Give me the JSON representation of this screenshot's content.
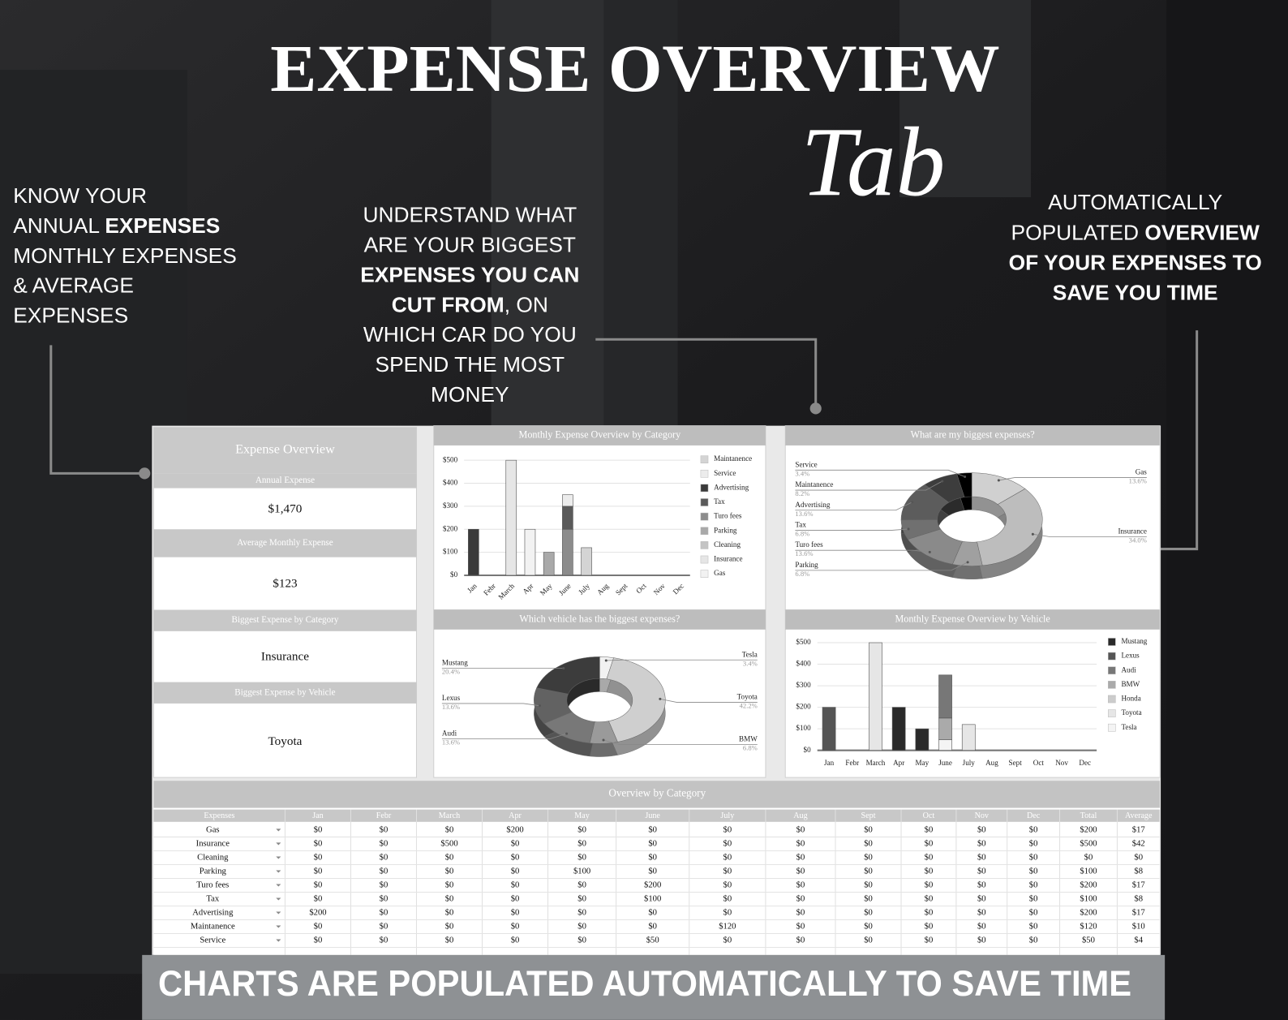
{
  "header": {
    "title": "EXPENSE OVERVIEW",
    "script": "Tab"
  },
  "callouts": [
    {
      "lines": [
        [
          {
            "text": "KNOW YOUR"
          }
        ],
        [
          {
            "text": "ANNUAL "
          },
          {
            "text": "EXPENSES",
            "bold": true
          }
        ],
        [
          {
            "text": "MONTHLY EXPENSES"
          }
        ],
        [
          {
            "text": "& AVERAGE"
          }
        ],
        [
          {
            "text": "EXPENSES"
          }
        ]
      ]
    },
    {
      "lines": [
        [
          {
            "text": "UNDERSTAND WHAT"
          }
        ],
        [
          {
            "text": "ARE YOUR BIGGEST"
          }
        ],
        [
          {
            "text": "EXPENSES YOU CAN",
            "bold": true
          }
        ],
        [
          {
            "text": "CUT FROM",
            "bold": true
          },
          {
            "text": ", ON"
          }
        ],
        [
          {
            "text": "WHICH CAR DO YOU"
          }
        ],
        [
          {
            "text": "SPEND THE MOST"
          }
        ],
        [
          {
            "text": "MONEY"
          }
        ]
      ]
    },
    {
      "lines": [
        [
          {
            "text": "AUTOMATICALLY"
          }
        ],
        [
          {
            "text": "POPULATED "
          },
          {
            "text": "OVERVIEW",
            "bold": true
          }
        ],
        [
          {
            "text": "OF YOUR EXPENSES TO",
            "bold": true
          }
        ],
        [
          {
            "text": "SAVE YOU TIME",
            "bold": true
          }
        ]
      ]
    }
  ],
  "summary": {
    "title": "Expense Overview",
    "items": [
      {
        "label": "Annual Expense",
        "value": "$1,470"
      },
      {
        "label": "Average Monthly Expense",
        "value": "$123"
      },
      {
        "label": "Biggest Expense by Category",
        "value": "Insurance"
      },
      {
        "label": "Biggest Expense by Vehicle",
        "value": "Toyota"
      }
    ]
  },
  "chart_data": [
    {
      "type": "bar",
      "title": "Monthly Expense Overview by Category",
      "stacked": true,
      "grid": true,
      "legend": "right",
      "categories": [
        "Jan",
        "Febr",
        "March",
        "Apr",
        "May",
        "June",
        "July",
        "Aug",
        "Sept",
        "Oct",
        "Nov",
        "Dec"
      ],
      "ylim": [
        0,
        500
      ],
      "yticks": [
        {
          "value": 0,
          "label": "$0"
        },
        {
          "value": 100,
          "label": "$100"
        },
        {
          "value": 200,
          "label": "$200"
        },
        {
          "value": 300,
          "label": "$300"
        },
        {
          "value": 400,
          "label": "$400"
        },
        {
          "value": 500,
          "label": "$500"
        }
      ],
      "series": [
        {
          "name": "Maintanence",
          "color": "#d4d4d4",
          "values": [
            0,
            0,
            0,
            0,
            0,
            0,
            120,
            0,
            0,
            0,
            0,
            0
          ]
        },
        {
          "name": "Service",
          "color": "#ececec",
          "values": [
            0,
            0,
            0,
            0,
            0,
            50,
            0,
            0,
            0,
            0,
            0,
            0
          ]
        },
        {
          "name": "Advertising",
          "color": "#3a3a3a",
          "values": [
            200,
            0,
            0,
            0,
            0,
            0,
            0,
            0,
            0,
            0,
            0,
            0
          ]
        },
        {
          "name": "Tax",
          "color": "#5a5a5a",
          "values": [
            0,
            0,
            0,
            0,
            0,
            100,
            0,
            0,
            0,
            0,
            0,
            0
          ]
        },
        {
          "name": "Turo fees",
          "color": "#8c8c8c",
          "values": [
            0,
            0,
            0,
            0,
            0,
            200,
            0,
            0,
            0,
            0,
            0,
            0
          ]
        },
        {
          "name": "Parking",
          "color": "#a9a9a9",
          "values": [
            0,
            0,
            0,
            0,
            100,
            0,
            0,
            0,
            0,
            0,
            0,
            0
          ]
        },
        {
          "name": "Cleaning",
          "color": "#c4c4c4",
          "values": [
            0,
            0,
            0,
            0,
            0,
            0,
            0,
            0,
            0,
            0,
            0,
            0
          ]
        },
        {
          "name": "Insurance",
          "color": "#e6e6e6",
          "values": [
            0,
            0,
            500,
            0,
            0,
            0,
            0,
            0,
            0,
            0,
            0,
            0
          ]
        },
        {
          "name": "Gas",
          "color": "#f2f2f2",
          "values": [
            0,
            0,
            0,
            200,
            0,
            0,
            0,
            0,
            0,
            0,
            0,
            0
          ]
        }
      ]
    },
    {
      "type": "pie",
      "title": "What are my biggest expenses?",
      "categories": [
        "Gas",
        "Insurance",
        "Parking",
        "Turo fees",
        "Tax",
        "Advertising",
        "Maintanence",
        "Service"
      ],
      "values": [
        13.6,
        34,
        6.8,
        13.6,
        6.8,
        13.6,
        8.2,
        3.4
      ],
      "value_labels": [
        "13.6%",
        "34.0%",
        "6.8%",
        "13.6%",
        "6.8%",
        "13.6%",
        "8.2%",
        "3.4%"
      ],
      "colors": [
        "#d0d0d0",
        "#bdbdbd",
        "#a0a0a0",
        "#8a8a8a",
        "#707070",
        "#5c5c5c",
        "#3d3d3d",
        "#000000"
      ]
    },
    {
      "type": "pie",
      "title": "Which vehicle has the biggest expenses?",
      "categories": [
        "Tesla",
        "Toyota",
        "BMW",
        "Audi",
        "Lexus",
        "Mustang"
      ],
      "values": [
        3.4,
        42.2,
        6.8,
        13.6,
        13.6,
        20.4
      ],
      "value_labels": [
        "3.4%",
        "42.2%",
        "6.8%",
        "13.6%",
        "13.6%",
        "20.4%"
      ],
      "colors": [
        "#f2f2f2",
        "#cfcfcf",
        "#9a9a9a",
        "#787878",
        "#626262",
        "#3c3c3c"
      ]
    },
    {
      "type": "bar",
      "title": "Monthly Expense Overview by Vehicle",
      "stacked": true,
      "grid": true,
      "legend": "right",
      "categories": [
        "Jan",
        "Febr",
        "March",
        "Apr",
        "May",
        "June",
        "July",
        "Aug",
        "Sept",
        "Oct",
        "Nov",
        "Dec"
      ],
      "ylim": [
        0,
        500
      ],
      "yticks": [
        {
          "value": 0,
          "label": "$0"
        },
        {
          "value": 100,
          "label": "$100"
        },
        {
          "value": 200,
          "label": "$200"
        },
        {
          "value": 300,
          "label": "$300"
        },
        {
          "value": 400,
          "label": "$400"
        },
        {
          "value": 500,
          "label": "$500"
        }
      ],
      "series": [
        {
          "name": "Mustang",
          "color": "#2a2a2a",
          "values": [
            0,
            0,
            0,
            200,
            100,
            0,
            0,
            0,
            0,
            0,
            0,
            0
          ]
        },
        {
          "name": "Lexus",
          "color": "#555555",
          "values": [
            200,
            0,
            0,
            0,
            0,
            0,
            0,
            0,
            0,
            0,
            0,
            0
          ]
        },
        {
          "name": "Audi",
          "color": "#777777",
          "values": [
            0,
            0,
            0,
            0,
            0,
            200,
            0,
            0,
            0,
            0,
            0,
            0
          ]
        },
        {
          "name": "BMW",
          "color": "#aaaaaa",
          "values": [
            0,
            0,
            0,
            0,
            0,
            100,
            0,
            0,
            0,
            0,
            0,
            0
          ]
        },
        {
          "name": "Honda",
          "color": "#cccccc",
          "values": [
            0,
            0,
            0,
            0,
            0,
            0,
            0,
            0,
            0,
            0,
            0,
            0
          ]
        },
        {
          "name": "Toyota",
          "color": "#e6e6e6",
          "values": [
            0,
            0,
            500,
            0,
            0,
            0,
            120,
            0,
            0,
            0,
            0,
            0
          ]
        },
        {
          "name": "Tesla",
          "color": "#f4f4f4",
          "values": [
            0,
            0,
            0,
            0,
            0,
            50,
            0,
            0,
            0,
            0,
            0,
            0
          ]
        }
      ]
    }
  ],
  "table": {
    "title": "Overview by Category",
    "columns": [
      "Expenses",
      "Jan",
      "Febr",
      "March",
      "Apr",
      "May",
      "June",
      "July",
      "Aug",
      "Sept",
      "Oct",
      "Nov",
      "Dec",
      "Total",
      "Average"
    ],
    "rows": [
      [
        "Gas",
        "$0",
        "$0",
        "$0",
        "$200",
        "$0",
        "$0",
        "$0",
        "$0",
        "$0",
        "$0",
        "$0",
        "$0",
        "$200",
        "$17"
      ],
      [
        "Insurance",
        "$0",
        "$0",
        "$500",
        "$0",
        "$0",
        "$0",
        "$0",
        "$0",
        "$0",
        "$0",
        "$0",
        "$0",
        "$500",
        "$42"
      ],
      [
        "Cleaning",
        "$0",
        "$0",
        "$0",
        "$0",
        "$0",
        "$0",
        "$0",
        "$0",
        "$0",
        "$0",
        "$0",
        "$0",
        "$0",
        "$0"
      ],
      [
        "Parking",
        "$0",
        "$0",
        "$0",
        "$0",
        "$100",
        "$0",
        "$0",
        "$0",
        "$0",
        "$0",
        "$0",
        "$0",
        "$100",
        "$8"
      ],
      [
        "Turo fees",
        "$0",
        "$0",
        "$0",
        "$0",
        "$0",
        "$200",
        "$0",
        "$0",
        "$0",
        "$0",
        "$0",
        "$0",
        "$200",
        "$17"
      ],
      [
        "Tax",
        "$0",
        "$0",
        "$0",
        "$0",
        "$0",
        "$100",
        "$0",
        "$0",
        "$0",
        "$0",
        "$0",
        "$0",
        "$100",
        "$8"
      ],
      [
        "Advertising",
        "$200",
        "$0",
        "$0",
        "$0",
        "$0",
        "$0",
        "$0",
        "$0",
        "$0",
        "$0",
        "$0",
        "$0",
        "$200",
        "$17"
      ],
      [
        "Maintanence",
        "$0",
        "$0",
        "$0",
        "$0",
        "$0",
        "$0",
        "$120",
        "$0",
        "$0",
        "$0",
        "$0",
        "$0",
        "$120",
        "$10"
      ],
      [
        "Service",
        "$0",
        "$0",
        "$0",
        "$0",
        "$0",
        "$50",
        "$0",
        "$0",
        "$0",
        "$0",
        "$0",
        "$0",
        "$50",
        "$4"
      ]
    ]
  },
  "footer": {
    "banner": "CHARTS ARE POPULATED AUTOMATICALLY TO SAVE TIME"
  }
}
